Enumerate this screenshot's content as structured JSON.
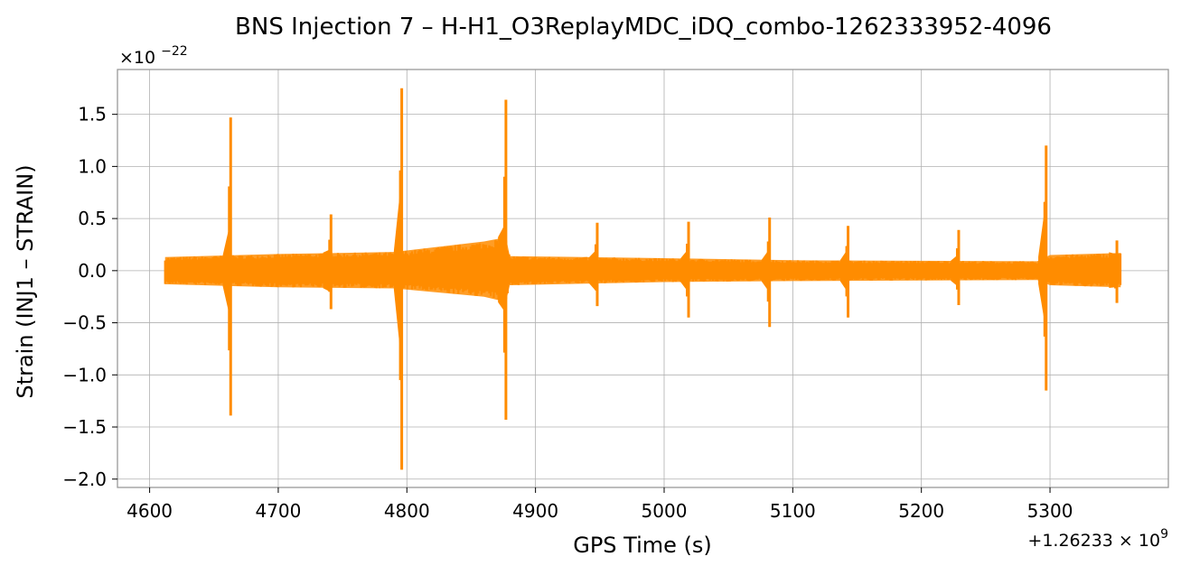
{
  "chart_data": {
    "type": "line",
    "title": "BNS Injection 7 – H-H1_O3ReplayMDC_iDQ_combo-1262333952-4096",
    "xlabel": "GPS Time (s)",
    "ylabel": "Strain (INJ1 – STRAIN)",
    "x_offset_label": "+1.26233 × 10^9",
    "y_multiplier_label": "×10^−22",
    "xlim": [
      4575,
      5392
    ],
    "ylim": [
      -2.08,
      1.93
    ],
    "x_ticks": [
      4600,
      4700,
      4800,
      4900,
      5000,
      5100,
      5200,
      5300
    ],
    "x_tick_labels": [
      "4600",
      "4700",
      "4800",
      "4900",
      "5000",
      "5100",
      "5200",
      "5300"
    ],
    "y_ticks": [
      -2.0,
      -1.5,
      -1.0,
      -0.5,
      0.0,
      0.5,
      1.0,
      1.5
    ],
    "y_tick_labels": [
      "−2.0",
      "−1.5",
      "−1.0",
      "−0.5",
      "0.0",
      "0.5",
      "1.0",
      "1.5"
    ],
    "grid": true,
    "series": [
      {
        "color": "#ff8c00",
        "x_range": [
          4612,
          5355
        ],
        "noise_envelope": [
          {
            "x": 4612,
            "upper": 0.13,
            "lower": -0.13
          },
          {
            "x": 4700,
            "upper": 0.16,
            "lower": -0.16
          },
          {
            "x": 4790,
            "upper": 0.18,
            "lower": -0.17
          },
          {
            "x": 4860,
            "upper": 0.28,
            "lower": -0.25
          },
          {
            "x": 4877,
            "upper": 0.32,
            "lower": -0.3
          },
          {
            "x": 4880,
            "upper": 0.14,
            "lower": -0.14
          },
          {
            "x": 5000,
            "upper": 0.12,
            "lower": -0.11
          },
          {
            "x": 5100,
            "upper": 0.1,
            "lower": -0.1
          },
          {
            "x": 5290,
            "upper": 0.09,
            "lower": -0.09
          },
          {
            "x": 5300,
            "upper": 0.15,
            "lower": -0.14
          },
          {
            "x": 5355,
            "upper": 0.17,
            "lower": -0.16
          }
        ],
        "glitches": [
          {
            "x": 4663,
            "max": 1.47,
            "min": -1.39,
            "precursor_max": 0.45,
            "precursor_min": -0.45
          },
          {
            "x": 4741,
            "max": 0.54,
            "min": -0.37,
            "precursor_max": 0.2,
            "precursor_min": -0.2
          },
          {
            "x": 4796,
            "max": 1.75,
            "min": -1.91,
            "precursor_max": 0.85,
            "precursor_min": -0.85
          },
          {
            "x": 4877,
            "max": 1.64,
            "min": -1.43,
            "precursor_max": 0.45,
            "precursor_min": -0.4
          },
          {
            "x": 4948,
            "max": 0.46,
            "min": -0.34,
            "precursor_max": 0.2,
            "precursor_min": -0.2
          },
          {
            "x": 5019,
            "max": 0.47,
            "min": -0.45,
            "precursor_max": 0.2,
            "precursor_min": -0.2
          },
          {
            "x": 5082,
            "max": 0.51,
            "min": -0.54,
            "precursor_max": 0.2,
            "precursor_min": -0.2
          },
          {
            "x": 5143,
            "max": 0.43,
            "min": -0.45,
            "precursor_max": 0.2,
            "precursor_min": -0.2
          },
          {
            "x": 5229,
            "max": 0.39,
            "min": -0.33,
            "precursor_max": 0.15,
            "precursor_min": -0.15
          },
          {
            "x": 5297,
            "max": 1.2,
            "min": -1.15,
            "precursor_max": 0.65,
            "precursor_min": -0.55
          },
          {
            "x": 5352,
            "max": 0.29,
            "min": -0.31,
            "precursor_max": 0.15,
            "precursor_min": -0.15
          }
        ]
      }
    ]
  }
}
